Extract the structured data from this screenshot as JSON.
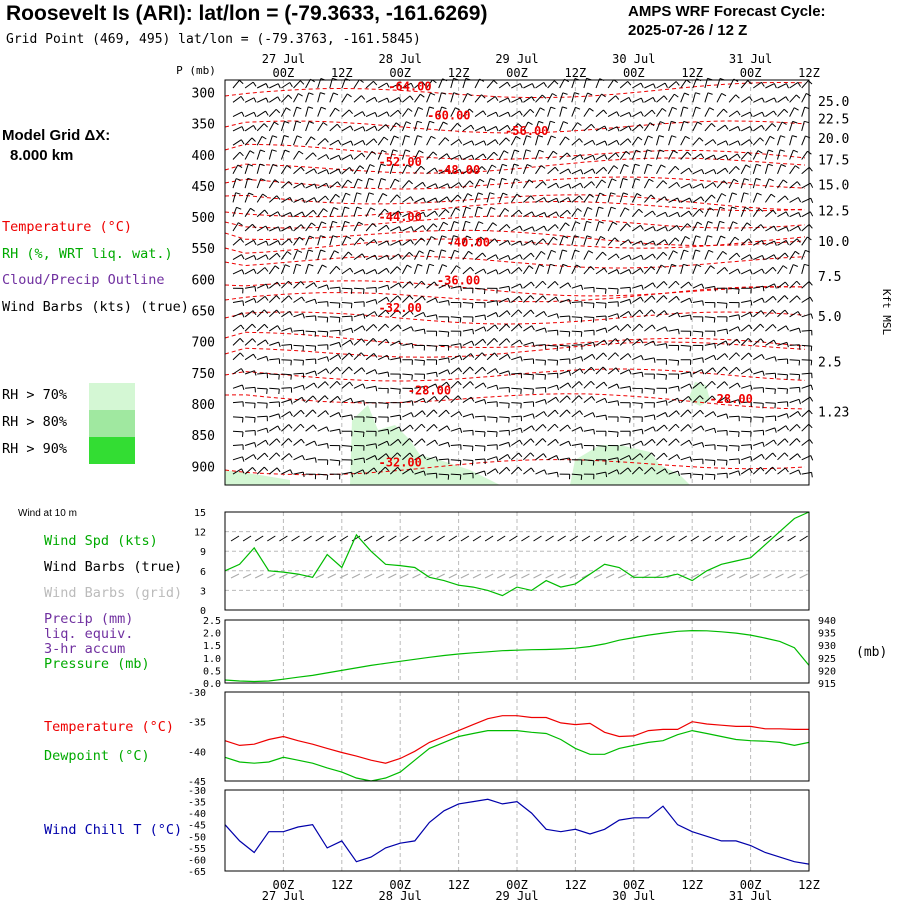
{
  "header": {
    "title": "Roosevelt Is (ARI):  lat/lon = (-79.3633, -161.6269)",
    "subtitle": "Grid Point (469, 495) lat/lon = (-79.3763, -161.5845)",
    "cycle_line1": "AMPS WRF Forecast Cycle:",
    "cycle_line2": "2025-07-26 / 12  Z"
  },
  "model_grid": {
    "line1": "Model Grid ΔX:",
    "line2": "8.000 km"
  },
  "legend": {
    "temperature": "Temperature (°C)",
    "rh": "RH (%, WRT liq. wat.)",
    "cloud": "Cloud/Precip Outline",
    "wind": "Wind Barbs (kts) (true)"
  },
  "rh_legend": [
    {
      "label": "RH > 70%",
      "color": "#d4f7d4"
    },
    {
      "label": "RH > 80%",
      "color": "#a0e8a0"
    },
    {
      "label": "RH > 90%",
      "color": "#33dd33"
    }
  ],
  "time_axis": {
    "ticks": [
      "00Z",
      "12Z",
      "00Z",
      "12Z",
      "00Z",
      "12Z",
      "00Z",
      "12Z",
      "00Z",
      "12Z"
    ],
    "tick_hours": [
      12,
      24,
      36,
      48,
      60,
      72,
      84,
      96,
      108,
      120
    ],
    "dates": [
      "27 Jul",
      "28 Jul",
      "29 Jul",
      "30 Jul",
      "31 Jul"
    ],
    "date_hours": [
      12,
      36,
      60,
      84,
      108
    ],
    "start_hour": 0,
    "end_hour": 120
  },
  "colors": {
    "temperature": "#ee0000",
    "rh": "#00bb00",
    "cloud": "#7030a0",
    "wind_true": "#000000",
    "wind_grid": "#aaaaaa",
    "wind_chill": "#0000aa",
    "grid": "#bbbbbb"
  },
  "chart_data": [
    {
      "type": "line",
      "panel": "cross-section",
      "ylabel": "P (mb)",
      "y_ticks": [
        300,
        350,
        400,
        450,
        500,
        550,
        600,
        650,
        700,
        750,
        800,
        850,
        900
      ],
      "ylim": [
        930,
        280
      ],
      "right_axis_label": "Kft MSL",
      "right_ticks": [
        "25.0",
        "22.5",
        "20.0",
        "17.5",
        "15.0",
        "12.5",
        "10.0",
        "7.5",
        "5.0",
        "2.5",
        "1.23"
      ],
      "right_tick_pressures": [
        315,
        343,
        375,
        409,
        449,
        491,
        540,
        596,
        660,
        733,
        814
      ],
      "right_tick_bottom": "1.23",
      "isotherm_labels": [
        {
          "label": "-64.00",
          "hour": 38,
          "p": 297
        },
        {
          "label": "-60.00",
          "hour": 46,
          "p": 343
        },
        {
          "label": "-56.00",
          "hour": 62,
          "p": 368
        },
        {
          "label": "-52.00",
          "hour": 36,
          "p": 418
        },
        {
          "label": "-48.00",
          "hour": 48,
          "p": 431
        },
        {
          "label": "-44.00",
          "hour": 36,
          "p": 506
        },
        {
          "label": "-40.00",
          "hour": 50,
          "p": 547
        },
        {
          "label": "-36.00",
          "hour": 48,
          "p": 608
        },
        {
          "label": "-32.00",
          "hour": 36,
          "p": 652
        },
        {
          "label": "-28.00",
          "hour": 42,
          "p": 785
        },
        {
          "label": "-28.00",
          "hour": 104,
          "p": 798
        },
        {
          "label": "-32.00",
          "hour": 36,
          "p": 900
        }
      ]
    },
    {
      "type": "line",
      "panel": "wind-10m",
      "panel_label": "Wind at 10 m",
      "ylim": [
        0,
        15
      ],
      "y_ticks": [
        0,
        3,
        6,
        9,
        12,
        15
      ],
      "series": [
        {
          "name": "Wind Spd (kts)",
          "x": [
            0,
            3,
            6,
            9,
            12,
            15,
            18,
            21,
            24,
            27,
            30,
            33,
            36,
            39,
            42,
            45,
            48,
            51,
            54,
            57,
            60,
            63,
            66,
            69,
            72,
            75,
            78,
            81,
            84,
            87,
            90,
            93,
            96,
            99,
            102,
            105,
            108,
            111,
            114,
            117,
            120
          ],
          "values": [
            6,
            7,
            9.5,
            6,
            5.8,
            5.5,
            5,
            8.5,
            6.5,
            11.5,
            9,
            7,
            6.8,
            6.5,
            5,
            4.5,
            3.8,
            3.5,
            3,
            2.2,
            3.5,
            3,
            4.5,
            3.5,
            4,
            5.5,
            7,
            6.5,
            5,
            5,
            5,
            5.5,
            4.5,
            6,
            7,
            7.5,
            8,
            10,
            12,
            14,
            15
          ]
        }
      ],
      "legend": [
        "Wind Spd (kts)",
        "Wind Barbs (true)",
        "Wind Barbs (grid)"
      ]
    },
    {
      "type": "line",
      "panel": "precip-pressure",
      "left_ylim": [
        0,
        2.5
      ],
      "left_ticks": [
        "0.0",
        "0.5",
        "1.0",
        "1.5",
        "2.0",
        "2.5"
      ],
      "right_ylim": [
        915,
        940
      ],
      "right_ticks": [
        "915",
        "920",
        "925",
        "930",
        "935",
        "940"
      ],
      "right_unit": "(mb)",
      "legend": [
        "Precip (mm)",
        "liq. equiv.",
        "3-hr accum",
        "Pressure (mb)"
      ],
      "series": [
        {
          "name": "Pressure (mb)",
          "x": [
            0,
            3,
            6,
            9,
            12,
            15,
            18,
            21,
            24,
            27,
            30,
            33,
            36,
            39,
            42,
            45,
            48,
            51,
            54,
            57,
            60,
            63,
            66,
            69,
            72,
            75,
            78,
            81,
            84,
            87,
            90,
            93,
            96,
            99,
            102,
            105,
            108,
            111,
            114,
            117,
            120
          ],
          "values": [
            916.2,
            915.8,
            915.6,
            915.8,
            916.5,
            917.3,
            918,
            919,
            920,
            921,
            922,
            922.8,
            923.6,
            924.4,
            925.2,
            925.9,
            926.5,
            927,
            927.4,
            927.8,
            928,
            928.2,
            928.3,
            928.5,
            928.8,
            929.5,
            930.5,
            932,
            933,
            934,
            934.8,
            935.5,
            935.8,
            935.7,
            935.3,
            934.8,
            934,
            932.8,
            931.5,
            929,
            922
          ]
        }
      ]
    },
    {
      "type": "line",
      "panel": "temperature-dewpoint",
      "ylim": [
        -45,
        -30
      ],
      "y_ticks": [
        -45,
        -40,
        -35,
        -30
      ],
      "series": [
        {
          "name": "Temperature (°C)",
          "x": [
            0,
            3,
            6,
            9,
            12,
            15,
            18,
            21,
            24,
            27,
            30,
            33,
            36,
            39,
            42,
            45,
            48,
            51,
            54,
            57,
            60,
            63,
            66,
            69,
            72,
            75,
            78,
            81,
            84,
            87,
            90,
            93,
            96,
            99,
            102,
            105,
            108,
            111,
            114,
            117,
            120
          ],
          "values": [
            -38.2,
            -39,
            -38.8,
            -38,
            -37.5,
            -38.2,
            -38.8,
            -39.5,
            -40.2,
            -40.8,
            -41.5,
            -42,
            -41.2,
            -40,
            -38.5,
            -37.5,
            -36.5,
            -35.5,
            -34.5,
            -34,
            -34,
            -34.3,
            -34.3,
            -35.2,
            -35.5,
            -35.3,
            -36.8,
            -37.5,
            -37.4,
            -36.5,
            -36.3,
            -36.3,
            -35,
            -35.4,
            -35.6,
            -35.8,
            -35.8,
            -36.2,
            -36.2,
            -36.3,
            -36.3
          ]
        },
        {
          "name": "Dewpoint (°C)",
          "x": [
            0,
            3,
            6,
            9,
            12,
            15,
            18,
            21,
            24,
            27,
            30,
            33,
            36,
            39,
            42,
            45,
            48,
            51,
            54,
            57,
            60,
            63,
            66,
            69,
            72,
            75,
            78,
            81,
            84,
            87,
            90,
            93,
            96,
            99,
            102,
            105,
            108,
            111,
            114,
            117,
            120
          ],
          "values": [
            -41,
            -41.8,
            -42,
            -41.8,
            -41,
            -41.5,
            -42,
            -42.8,
            -43.5,
            -44.5,
            -45,
            -44.5,
            -43.5,
            -41.5,
            -39.5,
            -38.5,
            -37.5,
            -37,
            -36.5,
            -36.5,
            -36.5,
            -36.8,
            -37,
            -38,
            -39.5,
            -40.5,
            -40.5,
            -39.5,
            -39,
            -38.5,
            -38.2,
            -37.2,
            -36.5,
            -37,
            -37.5,
            -38,
            -38.2,
            -38.3,
            -38.5,
            -39,
            -38.5
          ]
        }
      ]
    },
    {
      "type": "line",
      "panel": "wind-chill",
      "ylim": [
        -65,
        -30
      ],
      "y_ticks": [
        -65,
        -60,
        -55,
        -50,
        -45,
        -40,
        -35,
        -30
      ],
      "series": [
        {
          "name": "Wind Chill T (°C)",
          "x": [
            0,
            3,
            6,
            9,
            12,
            15,
            18,
            21,
            24,
            27,
            30,
            33,
            36,
            39,
            42,
            45,
            48,
            51,
            54,
            57,
            60,
            63,
            66,
            69,
            72,
            75,
            78,
            81,
            84,
            87,
            90,
            93,
            96,
            99,
            102,
            105,
            108,
            111,
            114,
            117,
            120
          ],
          "values": [
            -45,
            -52,
            -57,
            -48,
            -48,
            -46,
            -45,
            -55,
            -52,
            -61,
            -59,
            -55,
            -53,
            -52,
            -44,
            -39,
            -36,
            -35,
            -34,
            -36,
            -35,
            -40,
            -47,
            -48,
            -47,
            -49,
            -47,
            -43,
            -42,
            -42,
            -37,
            -45,
            -48,
            -50,
            -52,
            -52,
            -54,
            -57,
            -59,
            -61,
            -62
          ]
        }
      ]
    }
  ],
  "panels": {
    "wind_legend": [
      "Wind Spd (kts)",
      "Wind Barbs (true)",
      "Wind Barbs (grid)"
    ],
    "precip_legend": [
      "Precip (mm)",
      "liq. equiv.",
      "3-hr accum",
      "Pressure (mb)"
    ],
    "temp_legend": [
      "Temperature (°C)",
      "Dewpoint (°C)"
    ],
    "chill_legend": [
      "Wind Chill T (°C)"
    ]
  }
}
